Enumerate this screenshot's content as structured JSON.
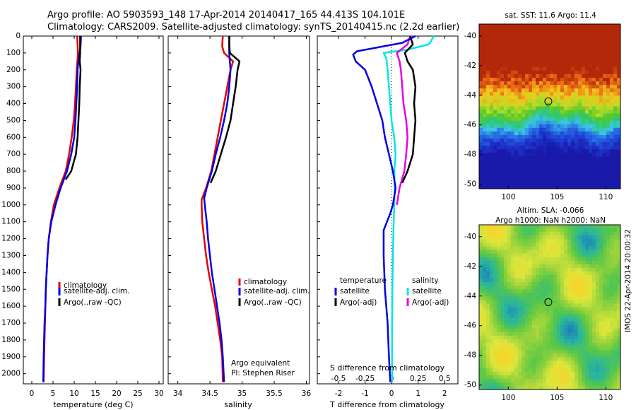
{
  "figure": {
    "title_line1": "Argo profile: AO 5903593_148 17-Apr-2014 20140417_165 44.413S 104.101E",
    "title_line2": "Climatology: CARS2009. Satellite-adjusted climatology: synTS_20140415.nc (2.2d earlier)",
    "watermark": "IMOS 22-Apr-2014 20:00:32"
  },
  "colors": {
    "climatology": "#e60000",
    "satellite": "#0000e6",
    "argo": "#000000",
    "satellite_sal": "#00e6e6",
    "argo_sal": "#e600e6"
  },
  "chart_data": [
    {
      "type": "line",
      "name": "temperature profile",
      "xlabel": "temperature (deg C)",
      "xlim": [
        -2,
        31
      ],
      "ylim": [
        2060,
        0
      ],
      "xticks": [
        "0",
        "5",
        "10",
        "15",
        "20",
        "25",
        "30"
      ],
      "xtick_values": [
        0,
        5,
        10,
        15,
        20,
        25,
        30
      ],
      "yticks": [
        "0",
        "100",
        "200",
        "300",
        "400",
        "500",
        "600",
        "700",
        "800",
        "900",
        "1000",
        "1100",
        "1200",
        "1300",
        "1400",
        "1500",
        "1600",
        "1700",
        "1800",
        "1900",
        "2000"
      ],
      "ytick_values": [
        0,
        100,
        200,
        300,
        400,
        500,
        600,
        700,
        800,
        900,
        1000,
        1100,
        1200,
        1300,
        1400,
        1500,
        1600,
        1700,
        1800,
        1900,
        2000
      ],
      "legend": [
        "climatology",
        "satellite-adj. clim.",
        "Argo(..raw -QC)"
      ],
      "legend_colors": [
        "#e60000",
        "#0000e6",
        "#000000"
      ],
      "series": [
        {
          "name": "climatology",
          "color": "#e60000",
          "points": [
            [
              10.7,
              0
            ],
            [
              10.8,
              50
            ],
            [
              10.9,
              100
            ],
            [
              10.6,
              200
            ],
            [
              10.4,
              300
            ],
            [
              10.2,
              400
            ],
            [
              9.9,
              500
            ],
            [
              9.4,
              600
            ],
            [
              8.8,
              700
            ],
            [
              8.0,
              800
            ],
            [
              6.5,
              900
            ],
            [
              5.2,
              1000
            ],
            [
              4.5,
              1100
            ],
            [
              4.0,
              1200
            ],
            [
              3.7,
              1300
            ],
            [
              3.5,
              1400
            ],
            [
              3.3,
              1500
            ],
            [
              3.2,
              1600
            ],
            [
              3.1,
              1700
            ],
            [
              3.0,
              1800
            ],
            [
              2.9,
              1900
            ],
            [
              2.8,
              2050
            ]
          ]
        },
        {
          "name": "satellite-adj. clim.",
          "color": "#0000e6",
          "points": [
            [
              11.6,
              0
            ],
            [
              11.5,
              60
            ],
            [
              11.3,
              100
            ],
            [
              11.0,
              150
            ],
            [
              10.8,
              200
            ],
            [
              10.7,
              300
            ],
            [
              10.5,
              400
            ],
            [
              10.3,
              500
            ],
            [
              10.0,
              600
            ],
            [
              9.3,
              700
            ],
            [
              8.3,
              800
            ],
            [
              6.8,
              900
            ],
            [
              5.6,
              1000
            ],
            [
              4.6,
              1100
            ],
            [
              4.0,
              1200
            ],
            [
              3.7,
              1300
            ],
            [
              3.5,
              1400
            ],
            [
              3.3,
              1500
            ],
            [
              3.2,
              1600
            ],
            [
              3.0,
              1700
            ],
            [
              2.9,
              1800
            ],
            [
              2.8,
              1900
            ],
            [
              2.7,
              2050
            ]
          ]
        },
        {
          "name": "Argo(..raw -QC)",
          "color": "#000000",
          "points": [
            [
              11.4,
              0
            ],
            [
              11.4,
              100
            ],
            [
              11.3,
              150
            ],
            [
              11.5,
              200
            ],
            [
              11.3,
              300
            ],
            [
              11.2,
              400
            ],
            [
              11.0,
              500
            ],
            [
              10.8,
              600
            ],
            [
              10.4,
              700
            ],
            [
              9.3,
              800
            ],
            [
              8.0,
              850
            ]
          ]
        }
      ]
    },
    {
      "type": "line",
      "name": "salinity profile",
      "xlabel": "salinity",
      "xlim": [
        33.85,
        36.05
      ],
      "ylim": [
        2060,
        0
      ],
      "xticks": [
        "34",
        "34.5",
        "35",
        "35.5",
        "36"
      ],
      "xtick_values": [
        34,
        34.5,
        35,
        35.5,
        36
      ],
      "legend": [
        "climatology",
        "satellite-adj. clim.",
        "Argo(..raw -QC)"
      ],
      "legend_colors": [
        "#e60000",
        "#0000e6",
        "#000000"
      ],
      "annotation_line1": "Argo equivalent",
      "annotation_line2": "PI: Stephen Riser",
      "series": [
        {
          "name": "climatology",
          "color": "#e60000",
          "points": [
            [
              34.7,
              0
            ],
            [
              34.69,
              60
            ],
            [
              34.72,
              100
            ],
            [
              34.86,
              150
            ],
            [
              34.82,
              200
            ],
            [
              34.77,
              300
            ],
            [
              34.72,
              400
            ],
            [
              34.67,
              500
            ],
            [
              34.62,
              600
            ],
            [
              34.57,
              700
            ],
            [
              34.52,
              800
            ],
            [
              34.44,
              900
            ],
            [
              34.37,
              970
            ],
            [
              34.37,
              1000
            ],
            [
              34.38,
              1100
            ],
            [
              34.41,
              1200
            ],
            [
              34.44,
              1300
            ],
            [
              34.48,
              1400
            ],
            [
              34.53,
              1500
            ],
            [
              34.58,
              1600
            ],
            [
              34.62,
              1700
            ],
            [
              34.66,
              1800
            ],
            [
              34.69,
              1900
            ],
            [
              34.7,
              2050
            ]
          ]
        },
        {
          "name": "satellite-adj. clim.",
          "color": "#0000e6",
          "points": [
            [
              34.8,
              0
            ],
            [
              34.8,
              100
            ],
            [
              34.81,
              150
            ],
            [
              34.82,
              200
            ],
            [
              34.8,
              300
            ],
            [
              34.77,
              400
            ],
            [
              34.72,
              500
            ],
            [
              34.66,
              600
            ],
            [
              34.59,
              700
            ],
            [
              34.53,
              800
            ],
            [
              34.45,
              900
            ],
            [
              34.41,
              960
            ],
            [
              34.42,
              1000
            ],
            [
              34.45,
              1100
            ],
            [
              34.47,
              1200
            ],
            [
              34.5,
              1300
            ],
            [
              34.53,
              1400
            ],
            [
              34.57,
              1500
            ],
            [
              34.61,
              1600
            ],
            [
              34.65,
              1700
            ],
            [
              34.68,
              1800
            ],
            [
              34.7,
              1900
            ],
            [
              34.72,
              2050
            ]
          ]
        },
        {
          "name": "Argo(..raw -QC)",
          "color": "#000000",
          "points": [
            [
              34.8,
              0
            ],
            [
              34.8,
              50
            ],
            [
              34.81,
              100
            ],
            [
              34.96,
              150
            ],
            [
              34.93,
              200
            ],
            [
              34.9,
              300
            ],
            [
              34.86,
              400
            ],
            [
              34.82,
              500
            ],
            [
              34.75,
              600
            ],
            [
              34.67,
              700
            ],
            [
              34.59,
              800
            ],
            [
              34.51,
              870
            ]
          ]
        }
      ]
    },
    {
      "type": "line",
      "name": "difference from climatology",
      "xlabel": "T difference from climatology",
      "xlabel_top": "S difference from climatology",
      "xlim": [
        -2.8,
        2.5
      ],
      "ylim": [
        2060,
        0
      ],
      "xticks": [
        "-2",
        "-1",
        "0",
        "1",
        "2"
      ],
      "xtick_values": [
        -2,
        -1,
        0,
        1,
        2
      ],
      "xticks_top": [
        "-0.5",
        "-0.25",
        "0",
        "0.25",
        "0.5"
      ],
      "xtick_top_values": [
        -0.5,
        -0.25,
        0,
        0.25,
        0.5
      ],
      "legend_temperature_title": "temperature",
      "legend_salinity_title": "salinity",
      "legend_temperature": [
        "satellite",
        "Argo(-adj)"
      ],
      "legend_temperature_colors": [
        "#0000e6",
        "#000000"
      ],
      "legend_salinity": [
        "satellite",
        "Argo(-adj)"
      ],
      "legend_salinity_colors": [
        "#00e6e6",
        "#e600e6"
      ],
      "series": [
        {
          "name": "satellite",
          "color": "#00e6e6",
          "quantity": "salinity difference (T-axis units ×4)",
          "points": [
            [
              1.6,
              0
            ],
            [
              1.4,
              50
            ],
            [
              0.6,
              80
            ],
            [
              -0.3,
              100
            ],
            [
              -0.2,
              130
            ],
            [
              -0.15,
              200
            ],
            [
              -0.1,
              300
            ],
            [
              -0.05,
              400
            ],
            [
              0.0,
              500
            ],
            [
              0.1,
              600
            ],
            [
              0.15,
              700
            ],
            [
              0.1,
              800
            ],
            [
              0.12,
              900
            ],
            [
              0.1,
              1000
            ],
            [
              0.08,
              1100
            ],
            [
              0.05,
              1300
            ],
            [
              0.03,
              1500
            ],
            [
              0.02,
              1700
            ],
            [
              0.02,
              1900
            ],
            [
              0.02,
              2050
            ]
          ]
        },
        {
          "name": "Argo(-adj)",
          "color": "#e600e6",
          "quantity": "salinity difference (T-axis units ×4)",
          "points": [
            [
              0.7,
              0
            ],
            [
              0.6,
              50
            ],
            [
              0.2,
              100
            ],
            [
              0.3,
              150
            ],
            [
              0.35,
              200
            ],
            [
              0.4,
              300
            ],
            [
              0.45,
              400
            ],
            [
              0.55,
              500
            ],
            [
              0.6,
              600
            ],
            [
              0.55,
              700
            ],
            [
              0.48,
              800
            ],
            [
              0.3,
              900
            ],
            [
              0.2,
              1000
            ]
          ]
        },
        {
          "name": "satellite",
          "color": "#0000e6",
          "quantity": "temperature difference",
          "points": [
            [
              0.9,
              0
            ],
            [
              0.4,
              40
            ],
            [
              -1.3,
              90
            ],
            [
              -1.45,
              110
            ],
            [
              -1.35,
              150
            ],
            [
              -1.0,
              200
            ],
            [
              -0.75,
              300
            ],
            [
              -0.55,
              400
            ],
            [
              -0.35,
              500
            ],
            [
              -0.25,
              600
            ],
            [
              -0.1,
              700
            ],
            [
              0.05,
              800
            ],
            [
              0.15,
              900
            ],
            [
              0.05,
              1000
            ],
            [
              -0.05,
              1050
            ],
            [
              -0.3,
              1150
            ],
            [
              -0.3,
              1300
            ],
            [
              -0.25,
              1500
            ],
            [
              -0.15,
              1700
            ],
            [
              -0.1,
              1900
            ],
            [
              -0.05,
              2050
            ]
          ]
        },
        {
          "name": "Argo(-adj)",
          "color": "#000000",
          "quantity": "temperature difference",
          "points": [
            [
              0.7,
              0
            ],
            [
              0.8,
              50
            ],
            [
              0.5,
              100
            ],
            [
              0.6,
              150
            ],
            [
              0.8,
              200
            ],
            [
              0.9,
              300
            ],
            [
              0.85,
              400
            ],
            [
              0.9,
              500
            ],
            [
              0.85,
              600
            ],
            [
              0.8,
              700
            ],
            [
              0.6,
              800
            ],
            [
              0.4,
              870
            ]
          ]
        }
      ]
    },
    {
      "type": "heatmap",
      "name": "sea surface temperature map",
      "title": "sat. SST: 11.6 Argo: 11.4",
      "xlim": [
        97,
        111.5
      ],
      "ylim": [
        -50.3,
        -39.2
      ],
      "xticks": [
        "100",
        "105",
        "110"
      ],
      "xtick_values": [
        100,
        105,
        110
      ],
      "yticks": [
        "-40",
        "-42",
        "-44",
        "-46",
        "-48",
        "-50"
      ],
      "ytick_values": [
        -40,
        -42,
        -44,
        -46,
        -48,
        -50
      ],
      "marker": {
        "lon": 104.101,
        "lat": -44.413
      }
    },
    {
      "type": "heatmap",
      "name": "sea level anomaly map",
      "title_line1": "Altim. SLA: -0.066",
      "title_line2": "Argo h1000: NaN h2000: NaN",
      "xlim": [
        97,
        111.5
      ],
      "ylim": [
        -50.3,
        -39.2
      ],
      "xticks": [
        "100",
        "105",
        "110"
      ],
      "xtick_values": [
        100,
        105,
        110
      ],
      "yticks": [
        "-40",
        "-42",
        "-44",
        "-46",
        "-48",
        "-50"
      ],
      "ytick_values": [
        -40,
        -42,
        -44,
        -46,
        -48,
        -50
      ],
      "marker": {
        "lon": 104.101,
        "lat": -44.413
      }
    }
  ]
}
